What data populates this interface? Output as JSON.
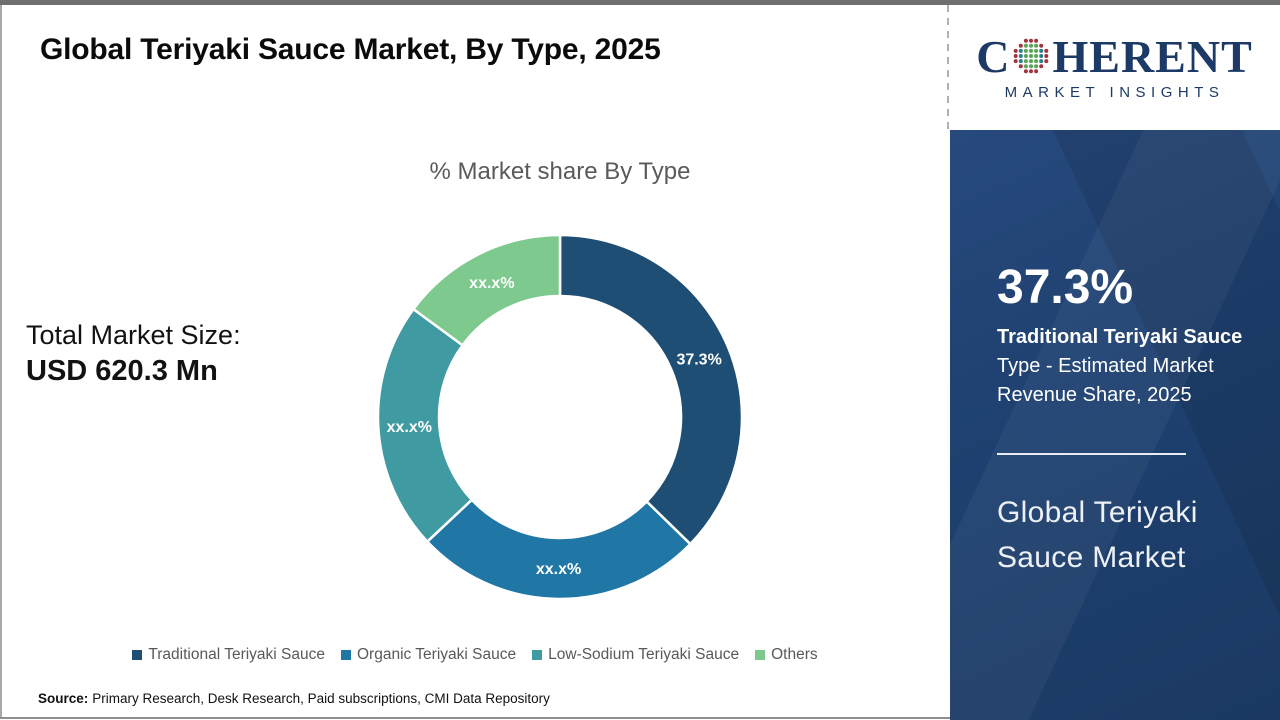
{
  "page": {
    "title": "Global Teriyaki Sauce Market, By Type, 2025",
    "source_label": "Source:",
    "source_text": "Primary Research, Desk Research, Paid subscriptions, CMI Data Repository"
  },
  "logo": {
    "word_start": "C",
    "word_end": "HERENT",
    "subtitle": "MARKET INSIGHTS",
    "navy": "#1d3a66",
    "globe_colors": {
      "outer": "#a2333f",
      "mid": "#58a558",
      "inner": "#2b7d8e"
    }
  },
  "left_stat": {
    "label": "Total Market Size:",
    "value": "USD 620.3 Mn"
  },
  "chart_data": {
    "type": "pie",
    "donut": true,
    "title": "% Market share By Type",
    "legend_position": "bottom",
    "start_angle_deg": 0,
    "segments": [
      {
        "name": "Traditional Teriyaki Sauce",
        "value": 37.3,
        "display_label": "37.3%",
        "color": "#1f4e74"
      },
      {
        "name": "Organic Teriyaki Sauce",
        "value": 25.7,
        "display_label": "xx.x%",
        "color": "#2076a5"
      },
      {
        "name": "Low-Sodium Teriyaki Sauce",
        "value": 22.1,
        "display_label": "xx.x%",
        "color": "#3f9ba1"
      },
      {
        "name": "Others",
        "value": 14.9,
        "display_label": "xx.x%",
        "color": "#7dc98e"
      }
    ]
  },
  "panel": {
    "bg_color": "#1e3f6d",
    "stat_value": "37.3%",
    "stat_desc_lines": [
      "Traditional Teriyaki Sauce",
      "Type - Estimated Market",
      "Revenue Share, 2025"
    ],
    "market_name_lines": [
      "Global Teriyaki",
      "Sauce Market"
    ]
  }
}
